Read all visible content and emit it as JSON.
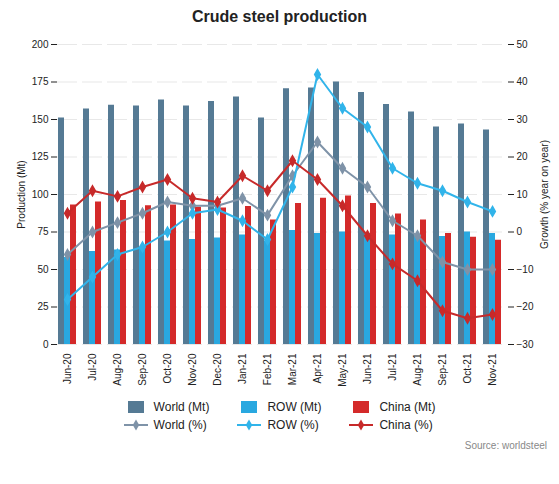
{
  "chart_data": {
    "type": "bar",
    "title": "Crude steel production",
    "source": "Source: worldsteel",
    "y_label": "Production (Mt)",
    "y2_label": "Growth (% year on year)",
    "categories": [
      "Jun-20",
      "Jul-20",
      "Aug-20",
      "Sep-20",
      "Oct-20",
      "Nov-20",
      "Dec-20",
      "Jan-21",
      "Feb-21",
      "Mar-21",
      "Apr-21",
      "May-21",
      "Jun-21",
      "Jul-21",
      "Aug-21",
      "Sep-21",
      "Oct-21",
      "Nov-21"
    ],
    "ylim": [
      0,
      200
    ],
    "yticks": [
      0,
      25,
      50,
      75,
      100,
      125,
      150,
      175,
      200
    ],
    "y2lim": [
      -30,
      50
    ],
    "y2ticks": [
      -30,
      -20,
      -10,
      0,
      10,
      20,
      30,
      40,
      50
    ],
    "grid": true,
    "legend": "bottom",
    "series": [
      {
        "name": "World (Mt)",
        "type": "bar",
        "color": "#557a94",
        "values": [
          151,
          157,
          159.5,
          159,
          163,
          159,
          162,
          165,
          151,
          170.5,
          171,
          175,
          168,
          160,
          155,
          145,
          147,
          143
        ]
      },
      {
        "name": "ROW (Mt)",
        "type": "bar",
        "color": "#29a8e0",
        "values": [
          58,
          62,
          63,
          64,
          69,
          70,
          71,
          73,
          69,
          76,
          74,
          75,
          74,
          73,
          72,
          72,
          75,
          74
        ]
      },
      {
        "name": "China (Mt)",
        "type": "bar",
        "color": "#d42a2a",
        "values": [
          93,
          95,
          96,
          92.5,
          93,
          91.5,
          91,
          92,
          83,
          94,
          97.5,
          99,
          94,
          87,
          83,
          74,
          71.5,
          69.5
        ]
      },
      {
        "name": "World (%)",
        "type": "line",
        "axis": "y2",
        "marker": "diamond",
        "color": "#7f93a8",
        "values": [
          -6,
          0,
          2.5,
          5,
          8,
          7,
          7,
          9,
          4.5,
          15,
          24,
          17,
          12,
          3,
          -1,
          -8,
          -10,
          -10
        ]
      },
      {
        "name": "ROW (%)",
        "type": "line",
        "axis": "y2",
        "marker": "diamond",
        "color": "#31b4ea",
        "values": [
          -18,
          -12,
          -6,
          -4,
          0,
          5,
          6,
          3,
          -2,
          12,
          42,
          33,
          28,
          17,
          13,
          11,
          8,
          5.5
        ]
      },
      {
        "name": "China (%)",
        "type": "line",
        "axis": "y2",
        "marker": "diamond",
        "color": "#c72a2a",
        "values": [
          5,
          11,
          9.5,
          12,
          14,
          9,
          8,
          15,
          11,
          19,
          14,
          7,
          -1,
          -8.5,
          -13,
          -21,
          -23,
          -22
        ]
      }
    ]
  }
}
